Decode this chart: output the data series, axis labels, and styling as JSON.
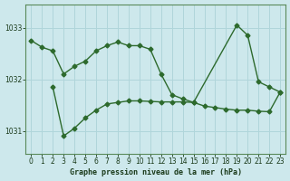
{
  "title": "Graphe pression niveau de la mer (hPa)",
  "bg_color": "#cde8ec",
  "grid_color": "#b0d5da",
  "line_color": "#2d6a2d",
  "spine_color": "#5a8a5a",
  "xlim": [
    -0.5,
    23.5
  ],
  "ylim": [
    1030.55,
    1033.45
  ],
  "yticks": [
    1031,
    1032,
    1033
  ],
  "xticks": [
    0,
    1,
    2,
    3,
    4,
    5,
    6,
    7,
    8,
    9,
    10,
    11,
    12,
    13,
    14,
    15,
    16,
    17,
    18,
    19,
    20,
    21,
    22,
    23
  ],
  "series1_x": [
    0,
    1,
    2,
    3,
    4,
    5,
    6,
    7,
    8,
    9,
    10,
    11,
    12,
    13,
    14,
    15,
    19,
    20,
    21,
    22,
    23
  ],
  "series1_y": [
    1032.75,
    1032.62,
    1032.55,
    1032.1,
    1032.25,
    1032.35,
    1032.55,
    1032.65,
    1032.72,
    1032.65,
    1032.65,
    1032.58,
    1032.1,
    1031.7,
    1031.62,
    1031.55,
    1033.05,
    1032.85,
    1031.95,
    1031.85,
    1031.75
  ],
  "series2_x": [
    2,
    3,
    4,
    5,
    6,
    7,
    8,
    9,
    10,
    11,
    12,
    13,
    14,
    15,
    16,
    17,
    18,
    19,
    20,
    21,
    22,
    23
  ],
  "series2_y": [
    1031.85,
    1030.9,
    1031.05,
    1031.25,
    1031.4,
    1031.52,
    1031.55,
    1031.58,
    1031.58,
    1031.57,
    1031.56,
    1031.56,
    1031.56,
    1031.55,
    1031.48,
    1031.45,
    1031.42,
    1031.4,
    1031.4,
    1031.38,
    1031.37,
    1031.75
  ],
  "tick_fontsize": 5.5,
  "label_fontsize": 6.0,
  "linewidth": 1.0,
  "markersize": 2.5
}
